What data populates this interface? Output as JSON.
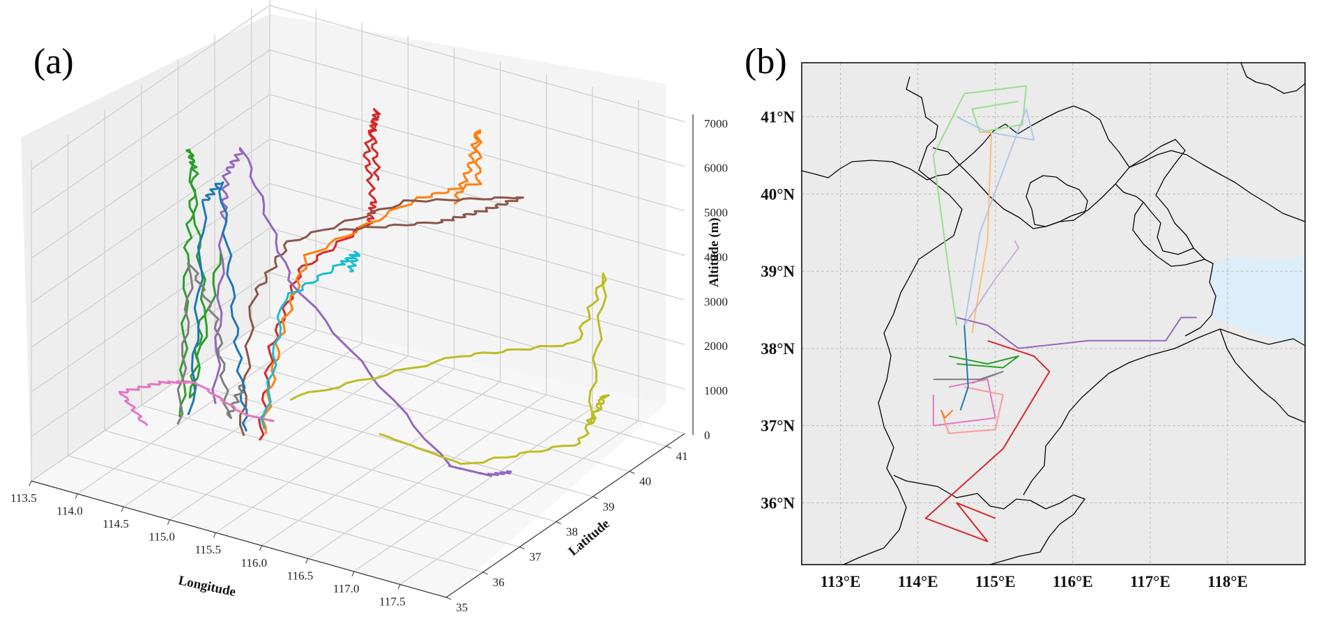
{
  "panels": {
    "a": {
      "label": "(a)"
    },
    "b": {
      "label": "(b)"
    }
  },
  "colors": {
    "pane": "#f2f2f2",
    "grid": "#cfcfcf",
    "map_land": "#ebebeb",
    "map_sea": "#dbeefa",
    "map_border": "#000000"
  },
  "chart_data": [
    {
      "type": "line3d",
      "panel": "a",
      "xlabel": "Longitude",
      "ylabel": "Latitude",
      "zlabel": "Altitude (m)",
      "xlim": [
        113.5,
        118.0
      ],
      "ylim": [
        35,
        41.5
      ],
      "zlim": [
        0,
        7200
      ],
      "x_ticks": [
        "113.5",
        "114.0",
        "114.5",
        "115.0",
        "115.5",
        "116.0",
        "116.5",
        "117.0",
        "117.5"
      ],
      "y_ticks": [
        "35",
        "36",
        "37",
        "38",
        "39",
        "40",
        "41"
      ],
      "z_ticks": [
        "0",
        "1000",
        "2000",
        "3000",
        "4000",
        "5000",
        "6000",
        "7000"
      ],
      "grid": true,
      "series": [
        {
          "color": "#d62728",
          "points": [
            [
              114.9,
              37.7,
              200
            ],
            [
              114.95,
              37.9,
              2200
            ],
            [
              115.1,
              38.3,
              3800
            ],
            [
              115.5,
              39.2,
              4600
            ],
            [
              115.5,
              39.3,
              5000
            ],
            [
              115.4,
              39.35,
              6000
            ],
            [
              115.5,
              39.4,
              7000
            ],
            [
              115.45,
              39.4,
              6500
            ],
            [
              115.55,
              39.3,
              5500
            ]
          ]
        },
        {
          "color": "#ff7f0e",
          "points": [
            [
              114.9,
              37.8,
              300
            ],
            [
              115.0,
              38.0,
              2400
            ],
            [
              115.1,
              38.5,
              4000
            ],
            [
              115.6,
              40.2,
              4600
            ],
            [
              116.0,
              40.9,
              4800
            ],
            [
              116.0,
              40.9,
              6000
            ],
            [
              115.95,
              40.8,
              5200
            ],
            [
              115.9,
              40.5,
              4500
            ]
          ]
        },
        {
          "color": "#8c564b",
          "points": [
            [
              114.7,
              37.7,
              200
            ],
            [
              114.75,
              37.9,
              3200
            ],
            [
              114.9,
              38.5,
              4200
            ],
            [
              115.5,
              40.2,
              4500
            ],
            [
              116.4,
              41.1,
              4600
            ],
            [
              116.1,
              40.8,
              4300
            ],
            [
              115.8,
              40.4,
              4100
            ],
            [
              115.2,
              39.1,
              4300
            ]
          ]
        },
        {
          "color": "#9467bd",
          "points": [
            [
              114.3,
              38.0,
              500
            ],
            [
              114.35,
              38.1,
              4600
            ],
            [
              114.3,
              38.3,
              5500
            ],
            [
              114.4,
              38.5,
              6000
            ],
            [
              115.0,
              38.3,
              3500
            ],
            [
              116.8,
              38.1,
              500
            ],
            [
              117.1,
              38.4,
              300
            ],
            [
              117.4,
              38.3,
              600
            ]
          ]
        },
        {
          "color": "#2ca02c",
          "points": [
            [
              114.1,
              37.6,
              300
            ],
            [
              114.15,
              37.6,
              4000
            ],
            [
              114.2,
              37.7,
              5800
            ],
            [
              114.1,
              37.8,
              6200
            ],
            [
              114.3,
              37.7,
              3000
            ],
            [
              114.2,
              37.6,
              800
            ],
            [
              114.4,
              37.9,
              4000
            ]
          ]
        },
        {
          "color": "#1f77b4",
          "points": [
            [
              114.2,
              37.6,
              400
            ],
            [
              114.3,
              37.7,
              5200
            ],
            [
              114.4,
              37.9,
              5600
            ],
            [
              114.6,
              37.8,
              2500
            ],
            [
              114.8,
              37.6,
              400
            ]
          ]
        },
        {
          "color": "#7f7f7f",
          "points": [
            [
              114.1,
              37.5,
              200
            ],
            [
              114.2,
              37.6,
              3800
            ],
            [
              114.4,
              37.8,
              2500
            ],
            [
              114.6,
              37.6,
              600
            ],
            [
              114.8,
              37.5,
              1500
            ]
          ]
        },
        {
          "color": "#e377c2",
          "points": [
            [
              113.9,
              37.1,
              300
            ],
            [
              113.6,
              37.2,
              800
            ],
            [
              114.0,
              37.3,
              1200
            ],
            [
              114.4,
              37.2,
              1500
            ],
            [
              114.9,
              37.3,
              1000
            ],
            [
              115.1,
              37.6,
              800
            ]
          ]
        },
        {
          "color": "#bcbd22",
          "points": [
            [
              115.0,
              38.2,
              900
            ],
            [
              116.4,
              39.4,
              2000
            ],
            [
              117.3,
              40.3,
              2300
            ],
            [
              117.5,
              40.6,
              3800
            ],
            [
              117.4,
              40.4,
              500
            ],
            [
              117.7,
              40.1,
              1500
            ],
            [
              117.5,
              39.9,
              400
            ],
            [
              116.8,
              38.5,
              300
            ],
            [
              116.0,
              38.2,
              700
            ]
          ]
        },
        {
          "color": "#17becf",
          "points": [
            [
              114.9,
              37.8,
              400
            ],
            [
              115.0,
              38.1,
              3200
            ],
            [
              115.3,
              38.9,
              3700
            ],
            [
              115.45,
              39.0,
              4000
            ],
            [
              115.4,
              38.9,
              3600
            ]
          ]
        }
      ]
    },
    {
      "type": "map-tracks",
      "panel": "b",
      "xlim": [
        112.5,
        119.0
      ],
      "ylim": [
        35.2,
        41.7
      ],
      "x_ticks": [
        "113°E",
        "114°E",
        "115°E",
        "116°E",
        "117°E",
        "118°E"
      ],
      "y_ticks": [
        "41°N",
        "40°N",
        "39°N",
        "38°N",
        "37°N",
        "36°N"
      ],
      "grid": true,
      "series": [
        {
          "color": "#98df8a",
          "points": [
            [
              114.5,
              38.3
            ],
            [
              114.4,
              39.0
            ],
            [
              114.2,
              40.5
            ],
            [
              114.6,
              41.3
            ],
            [
              115.4,
              41.4
            ],
            [
              115.35,
              40.9
            ],
            [
              114.8,
              40.8
            ],
            [
              114.7,
              41.1
            ],
            [
              115.3,
              41.2
            ]
          ]
        },
        {
          "color": "#aec7e8",
          "points": [
            [
              114.6,
              38.3
            ],
            [
              114.8,
              39.5
            ],
            [
              115.1,
              40.3
            ],
            [
              115.4,
              41.1
            ],
            [
              115.5,
              40.7
            ],
            [
              114.9,
              40.8
            ],
            [
              114.5,
              41.0
            ]
          ]
        },
        {
          "color": "#ffbb78",
          "points": [
            [
              114.7,
              38.2
            ],
            [
              114.9,
              39.4
            ],
            [
              114.95,
              40.8
            ],
            [
              114.8,
              40.8
            ]
          ]
        },
        {
          "color": "#9467bd",
          "points": [
            [
              114.5,
              38.4
            ],
            [
              114.9,
              38.3
            ],
            [
              115.3,
              38.0
            ],
            [
              116.2,
              38.1
            ],
            [
              117.2,
              38.1
            ],
            [
              117.4,
              38.4
            ],
            [
              117.6,
              38.4
            ]
          ]
        },
        {
          "color": "#c5b0d5",
          "points": [
            [
              114.6,
              38.3
            ],
            [
              115.0,
              38.9
            ],
            [
              115.3,
              39.3
            ],
            [
              115.25,
              39.4
            ]
          ]
        },
        {
          "color": "#2ca02c",
          "points": [
            [
              114.4,
              37.9
            ],
            [
              114.9,
              37.8
            ],
            [
              115.3,
              37.9
            ],
            [
              115.1,
              37.75
            ],
            [
              114.5,
              37.8
            ]
          ]
        },
        {
          "color": "#7f7f7f",
          "points": [
            [
              114.2,
              37.6
            ],
            [
              114.8,
              37.6
            ],
            [
              115.1,
              37.7
            ],
            [
              114.7,
              37.55
            ]
          ]
        },
        {
          "color": "#d62728",
          "points": [
            [
              114.9,
              38.1
            ],
            [
              115.5,
              37.9
            ],
            [
              115.7,
              37.7
            ],
            [
              115.1,
              36.7
            ],
            [
              114.1,
              35.8
            ],
            [
              114.9,
              35.5
            ],
            [
              114.5,
              36.0
            ],
            [
              115.0,
              35.8
            ]
          ]
        },
        {
          "color": "#e377c2",
          "points": [
            [
              114.2,
              37.4
            ],
            [
              114.2,
              37.0
            ],
            [
              115.0,
              37.1
            ],
            [
              114.9,
              37.6
            ],
            [
              114.4,
              37.5
            ]
          ]
        },
        {
          "color": "#ff9896",
          "points": [
            [
              114.3,
              37.2
            ],
            [
              114.4,
              36.9
            ],
            [
              115.0,
              36.95
            ],
            [
              115.1,
              37.4
            ],
            [
              114.6,
              37.5
            ]
          ]
        },
        {
          "color": "#ff7f0e",
          "points": [
            [
              114.3,
              37.2
            ],
            [
              114.35,
              37.1
            ],
            [
              114.45,
              37.2
            ]
          ]
        },
        {
          "color": "#1f77b4",
          "points": [
            [
              114.6,
              38.3
            ],
            [
              114.65,
              37.5
            ],
            [
              114.55,
              37.2
            ]
          ]
        }
      ]
    }
  ]
}
